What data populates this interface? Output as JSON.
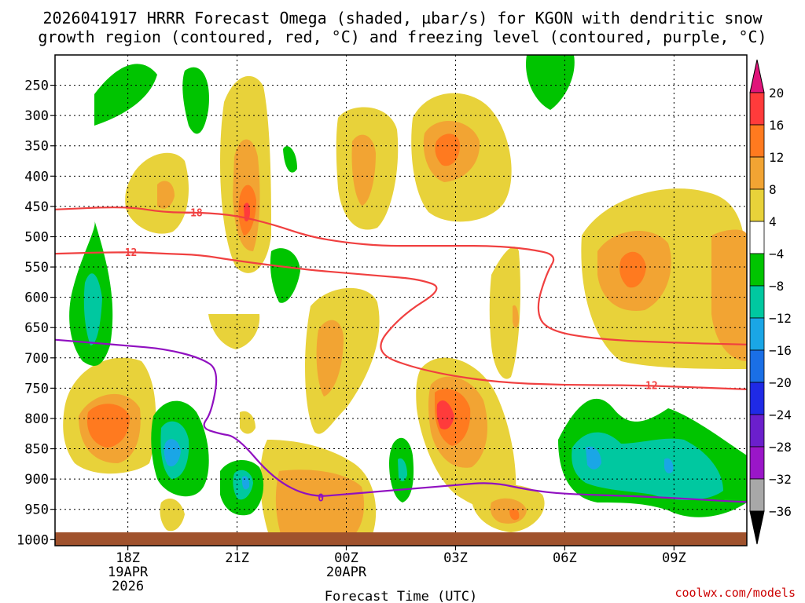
{
  "chart_data": {
    "type": "heatmap",
    "title_lines": [
      "2026041917 HRRR Forecast Omega (shaded, µbar/s) for KGON with dendritic snow",
      "growth region (contoured, red, °C) and freezing level (contoured, purple, °C)"
    ],
    "xlabel": "Forecast Time (UTC)",
    "y_ticks": [
      "250",
      "300",
      "350",
      "400",
      "450",
      "500",
      "550",
      "600",
      "650",
      "700",
      "750",
      "800",
      "850",
      "900",
      "950",
      "1000"
    ],
    "y_tick_values": [
      250,
      300,
      350,
      400,
      450,
      500,
      550,
      600,
      650,
      700,
      750,
      800,
      850,
      900,
      950,
      1000
    ],
    "y_range_hPa": [
      200,
      1010
    ],
    "x_range_hours": [
      -1,
      18
    ],
    "x_ticks": [
      {
        "hour": 1,
        "lines": [
          "18Z",
          "19APR",
          "2026"
        ]
      },
      {
        "hour": 4,
        "lines": [
          "21Z"
        ]
      },
      {
        "hour": 7,
        "lines": [
          "00Z",
          "20APR"
        ]
      },
      {
        "hour": 10,
        "lines": [
          "03Z"
        ]
      },
      {
        "hour": 13,
        "lines": [
          "06Z"
        ]
      },
      {
        "hour": 16,
        "lines": [
          "09Z"
        ]
      }
    ],
    "colorbar_labels": [
      "20",
      "16",
      "12",
      "8",
      "4",
      "−4",
      "−8",
      "−12",
      "−16",
      "−20",
      "−24",
      "−28",
      "−32",
      "−36"
    ],
    "colorbar_colors": [
      "#ff3b3b",
      "#ff7a1f",
      "#f2a433",
      "#e8d23a",
      "#ffffff",
      "#00c400",
      "#00c8a0",
      "#1aa6e6",
      "#1a6fe6",
      "#1f2ae6",
      "#6b1fcc",
      "#9a16c8",
      "#a8a8a8"
    ],
    "colorbar_top_color": "#e0147a",
    "colorbar_bottom_color": "#000000",
    "contours": [
      {
        "name": "-18 C",
        "label": "−18",
        "color": "#f04040",
        "points": [
          [
            -1,
            455
          ],
          [
            1,
            450
          ],
          [
            2,
            460
          ],
          [
            3,
            460
          ],
          [
            4,
            465
          ],
          [
            5,
            480
          ],
          [
            6,
            500
          ],
          [
            7,
            510
          ],
          [
            8,
            515
          ],
          [
            9,
            515
          ],
          [
            10,
            515
          ],
          [
            11,
            515
          ],
          [
            12,
            520
          ],
          [
            12.8,
            530
          ],
          [
            12.5,
            560
          ],
          [
            12.2,
            620
          ],
          [
            12.5,
            655
          ],
          [
            14,
            670
          ],
          [
            16,
            675
          ],
          [
            18,
            678
          ]
        ]
      },
      {
        "name": "-12 C",
        "label": "−12",
        "color": "#f04040",
        "points": [
          [
            -1,
            528
          ],
          [
            1,
            525
          ],
          [
            2,
            528
          ],
          [
            3,
            530
          ],
          [
            4,
            540
          ],
          [
            6,
            555
          ],
          [
            7,
            560
          ],
          [
            8,
            565
          ],
          [
            9,
            570
          ],
          [
            9.7,
            585
          ],
          [
            8.5,
            630
          ],
          [
            7.7,
            690
          ],
          [
            9,
            720
          ],
          [
            11,
            740
          ],
          [
            13,
            745
          ],
          [
            15,
            745
          ],
          [
            18,
            752
          ]
        ]
      },
      {
        "name": "0 C",
        "label": "0",
        "color": "#9010c0",
        "points": [
          [
            -1,
            670
          ],
          [
            1,
            680
          ],
          [
            2,
            685
          ],
          [
            3,
            700
          ],
          [
            3.5,
            720
          ],
          [
            3.3,
            790
          ],
          [
            3,
            815
          ],
          [
            3.5,
            825
          ],
          [
            4,
            830
          ],
          [
            5,
            900
          ],
          [
            6,
            930
          ],
          [
            7,
            925
          ],
          [
            8,
            920
          ],
          [
            9,
            915
          ],
          [
            10,
            910
          ],
          [
            11,
            905
          ],
          [
            12,
            918
          ],
          [
            13,
            925
          ],
          [
            15,
            928
          ],
          [
            17,
            935
          ],
          [
            18,
            938
          ]
        ]
      }
    ],
    "ground_color": "#a0522d"
  },
  "credit": "coolwx.com/models"
}
